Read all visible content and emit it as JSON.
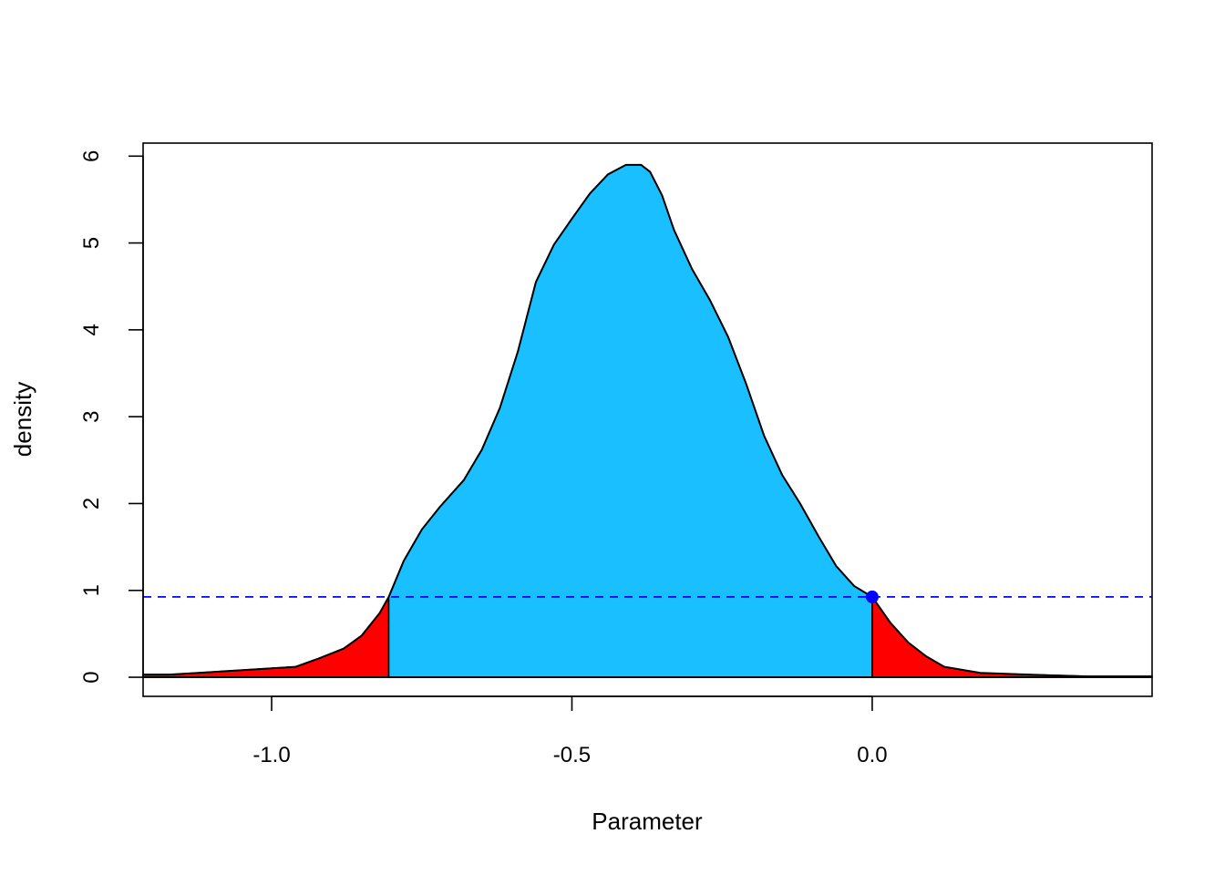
{
  "chart_data": {
    "type": "area",
    "title": "",
    "xlabel": "Parameter",
    "ylabel": "density",
    "xlim": [
      -1.214,
      0.466
    ],
    "ylim": [
      -0.22,
      6.15
    ],
    "x_ticks": [
      -1.0,
      -0.5,
      0.0
    ],
    "x_tick_labels": [
      "-1.0",
      "-0.5",
      "0.0"
    ],
    "y_ticks": [
      0,
      1,
      2,
      3,
      4,
      5,
      6
    ],
    "y_tick_labels": [
      "0",
      "1",
      "2",
      "3",
      "4",
      "5",
      "6"
    ],
    "grid": false,
    "interval": {
      "lower": -0.805,
      "upper": 0.0
    },
    "threshold_density": 0.925,
    "marker_point": {
      "x": 0.0,
      "y": 0.925
    },
    "colors": {
      "inside": "#1ABFFF",
      "tail": "#FF0000",
      "threshold_line": "#0000FF",
      "marker": "#0000FF",
      "outline": "#000000"
    },
    "series": [
      {
        "x": [
          -1.214,
          -1.17,
          -1.1,
          -1.03,
          -0.96,
          -0.92,
          -0.88,
          -0.85,
          -0.82,
          -0.805,
          -0.78,
          -0.75,
          -0.72,
          -0.68,
          -0.65,
          -0.62,
          -0.59,
          -0.56,
          -0.53,
          -0.5,
          -0.47,
          -0.44,
          -0.41,
          -0.385,
          -0.37,
          -0.35,
          -0.33,
          -0.3,
          -0.27,
          -0.24,
          -0.21,
          -0.18,
          -0.15,
          -0.12,
          -0.09,
          -0.06,
          -0.03,
          0.0,
          0.03,
          0.06,
          0.09,
          0.12,
          0.18,
          0.26,
          0.36,
          0.466
        ],
        "y": [
          0.03,
          0.03,
          0.06,
          0.09,
          0.12,
          0.22,
          0.33,
          0.48,
          0.74,
          0.925,
          1.34,
          1.7,
          1.96,
          2.27,
          2.62,
          3.1,
          3.75,
          4.55,
          4.98,
          5.28,
          5.57,
          5.79,
          5.9,
          5.9,
          5.82,
          5.55,
          5.15,
          4.7,
          4.34,
          3.92,
          3.38,
          2.78,
          2.33,
          2.0,
          1.63,
          1.28,
          1.05,
          0.925,
          0.63,
          0.4,
          0.24,
          0.12,
          0.05,
          0.03,
          0.01,
          0.01
        ]
      }
    ]
  }
}
